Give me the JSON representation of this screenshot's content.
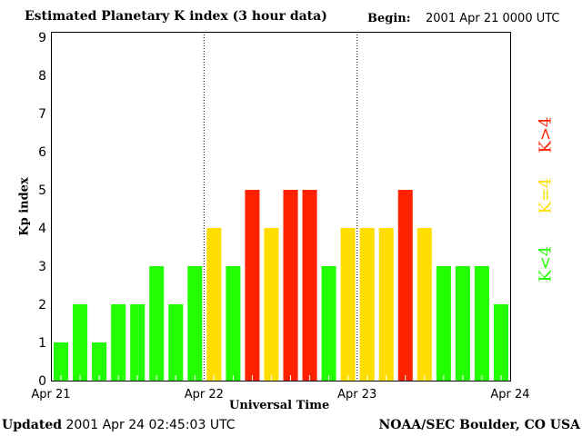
{
  "chart_data": {
    "type": "bar",
    "title": "Estimated Planetary K index (3 hour data)",
    "begin_label": "Begin:",
    "begin_value": "2001 Apr 21 0000 UTC",
    "xlabel": "Universal Time",
    "ylabel": "Kp index",
    "ylim": [
      0,
      9
    ],
    "yticks": [
      "0",
      "1",
      "2",
      "3",
      "4",
      "5",
      "6",
      "7",
      "8",
      "9"
    ],
    "xticks": [
      "Apr 21",
      "Apr 22",
      "Apr 23",
      "Apr 24"
    ],
    "values": [
      1,
      2,
      1,
      2,
      2,
      3,
      2,
      3,
      4,
      3,
      5,
      4,
      5,
      5,
      3,
      4,
      4,
      4,
      5,
      4,
      3,
      3,
      3,
      2
    ],
    "colors": {
      "low": "#22ff00",
      "equal": "#ffdd00",
      "high": "#ff2200"
    },
    "legend": [
      {
        "label": "K<4",
        "color": "#22ff00"
      },
      {
        "label": "K=4",
        "color": "#ffdd00"
      },
      {
        "label": "K>4",
        "color": "#ff2200"
      }
    ],
    "legend_placement": "right"
  },
  "footer": {
    "updated_label": "Updated",
    "updated_value": "2001 Apr 24 02:45:03 UTC",
    "source": "NOAA/SEC Boulder, CO USA"
  }
}
